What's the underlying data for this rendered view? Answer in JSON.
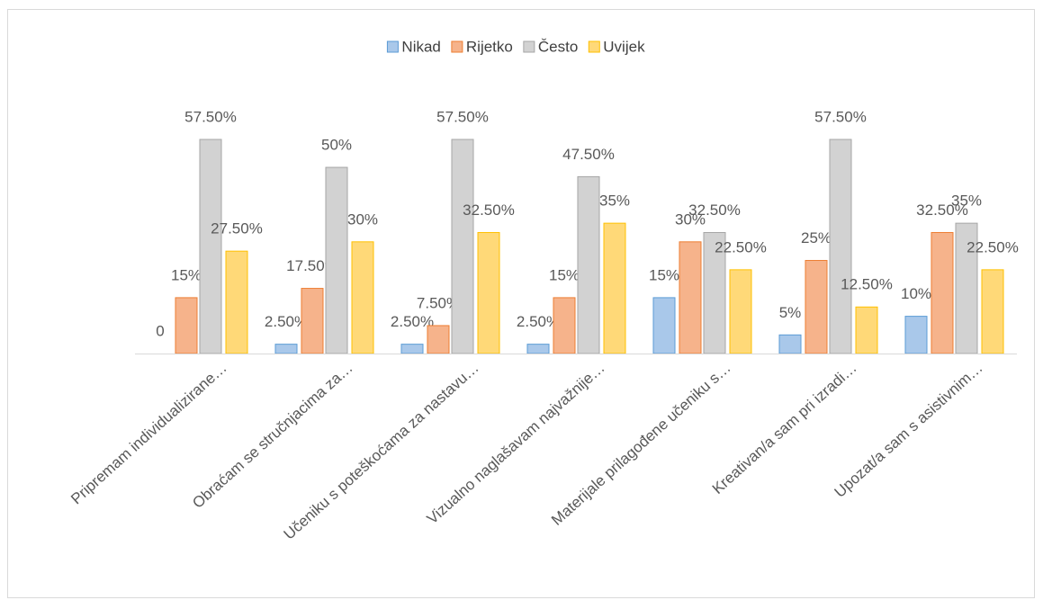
{
  "chart_data": {
    "type": "bar",
    "categories": [
      "Pripremam individualizirane…",
      "Obraćam se stručnjacima za…",
      "Učeniku s poteškoćama za nastavu…",
      "Vizualno naglašavam najvažnije…",
      "Materijale prilagođene učeniku s…",
      "Kreativan/a sam pri izradi…",
      "Upozat/a sam s asistivnim…"
    ],
    "series": [
      {
        "name": "Nikad",
        "color": "#5b9bd5",
        "values": [
          0,
          2.5,
          2.5,
          2.5,
          15,
          5,
          10
        ],
        "value_labels": [
          "0",
          "2.50%",
          "2.50%",
          "2.50%",
          "15%",
          "5%",
          "10%"
        ]
      },
      {
        "name": "Rijetko",
        "color": "#ed7d31",
        "values": [
          15,
          17.5,
          7.5,
          15,
          30,
          25,
          32.5
        ],
        "value_labels": [
          "15%",
          "17.50%",
          "7.50%",
          "15%",
          "30%",
          "25%",
          "32.50%"
        ]
      },
      {
        "name": "Često",
        "color": "#a5a5a5",
        "values": [
          57.5,
          50,
          57.5,
          47.5,
          32.5,
          57.5,
          35
        ],
        "value_labels": [
          "57.50%",
          "50%",
          "57.50%",
          "47.50%",
          "32.50%",
          "57.50%",
          "35%"
        ]
      },
      {
        "name": "Uvijek",
        "color": "#ffc000",
        "values": [
          27.5,
          30,
          32.5,
          35,
          22.5,
          12.5,
          22.5
        ],
        "value_labels": [
          "27.50%",
          "30%",
          "32.50%",
          "35%",
          "22.50%",
          "12.50%",
          "22.50%"
        ]
      }
    ],
    "legend": "top"
  }
}
